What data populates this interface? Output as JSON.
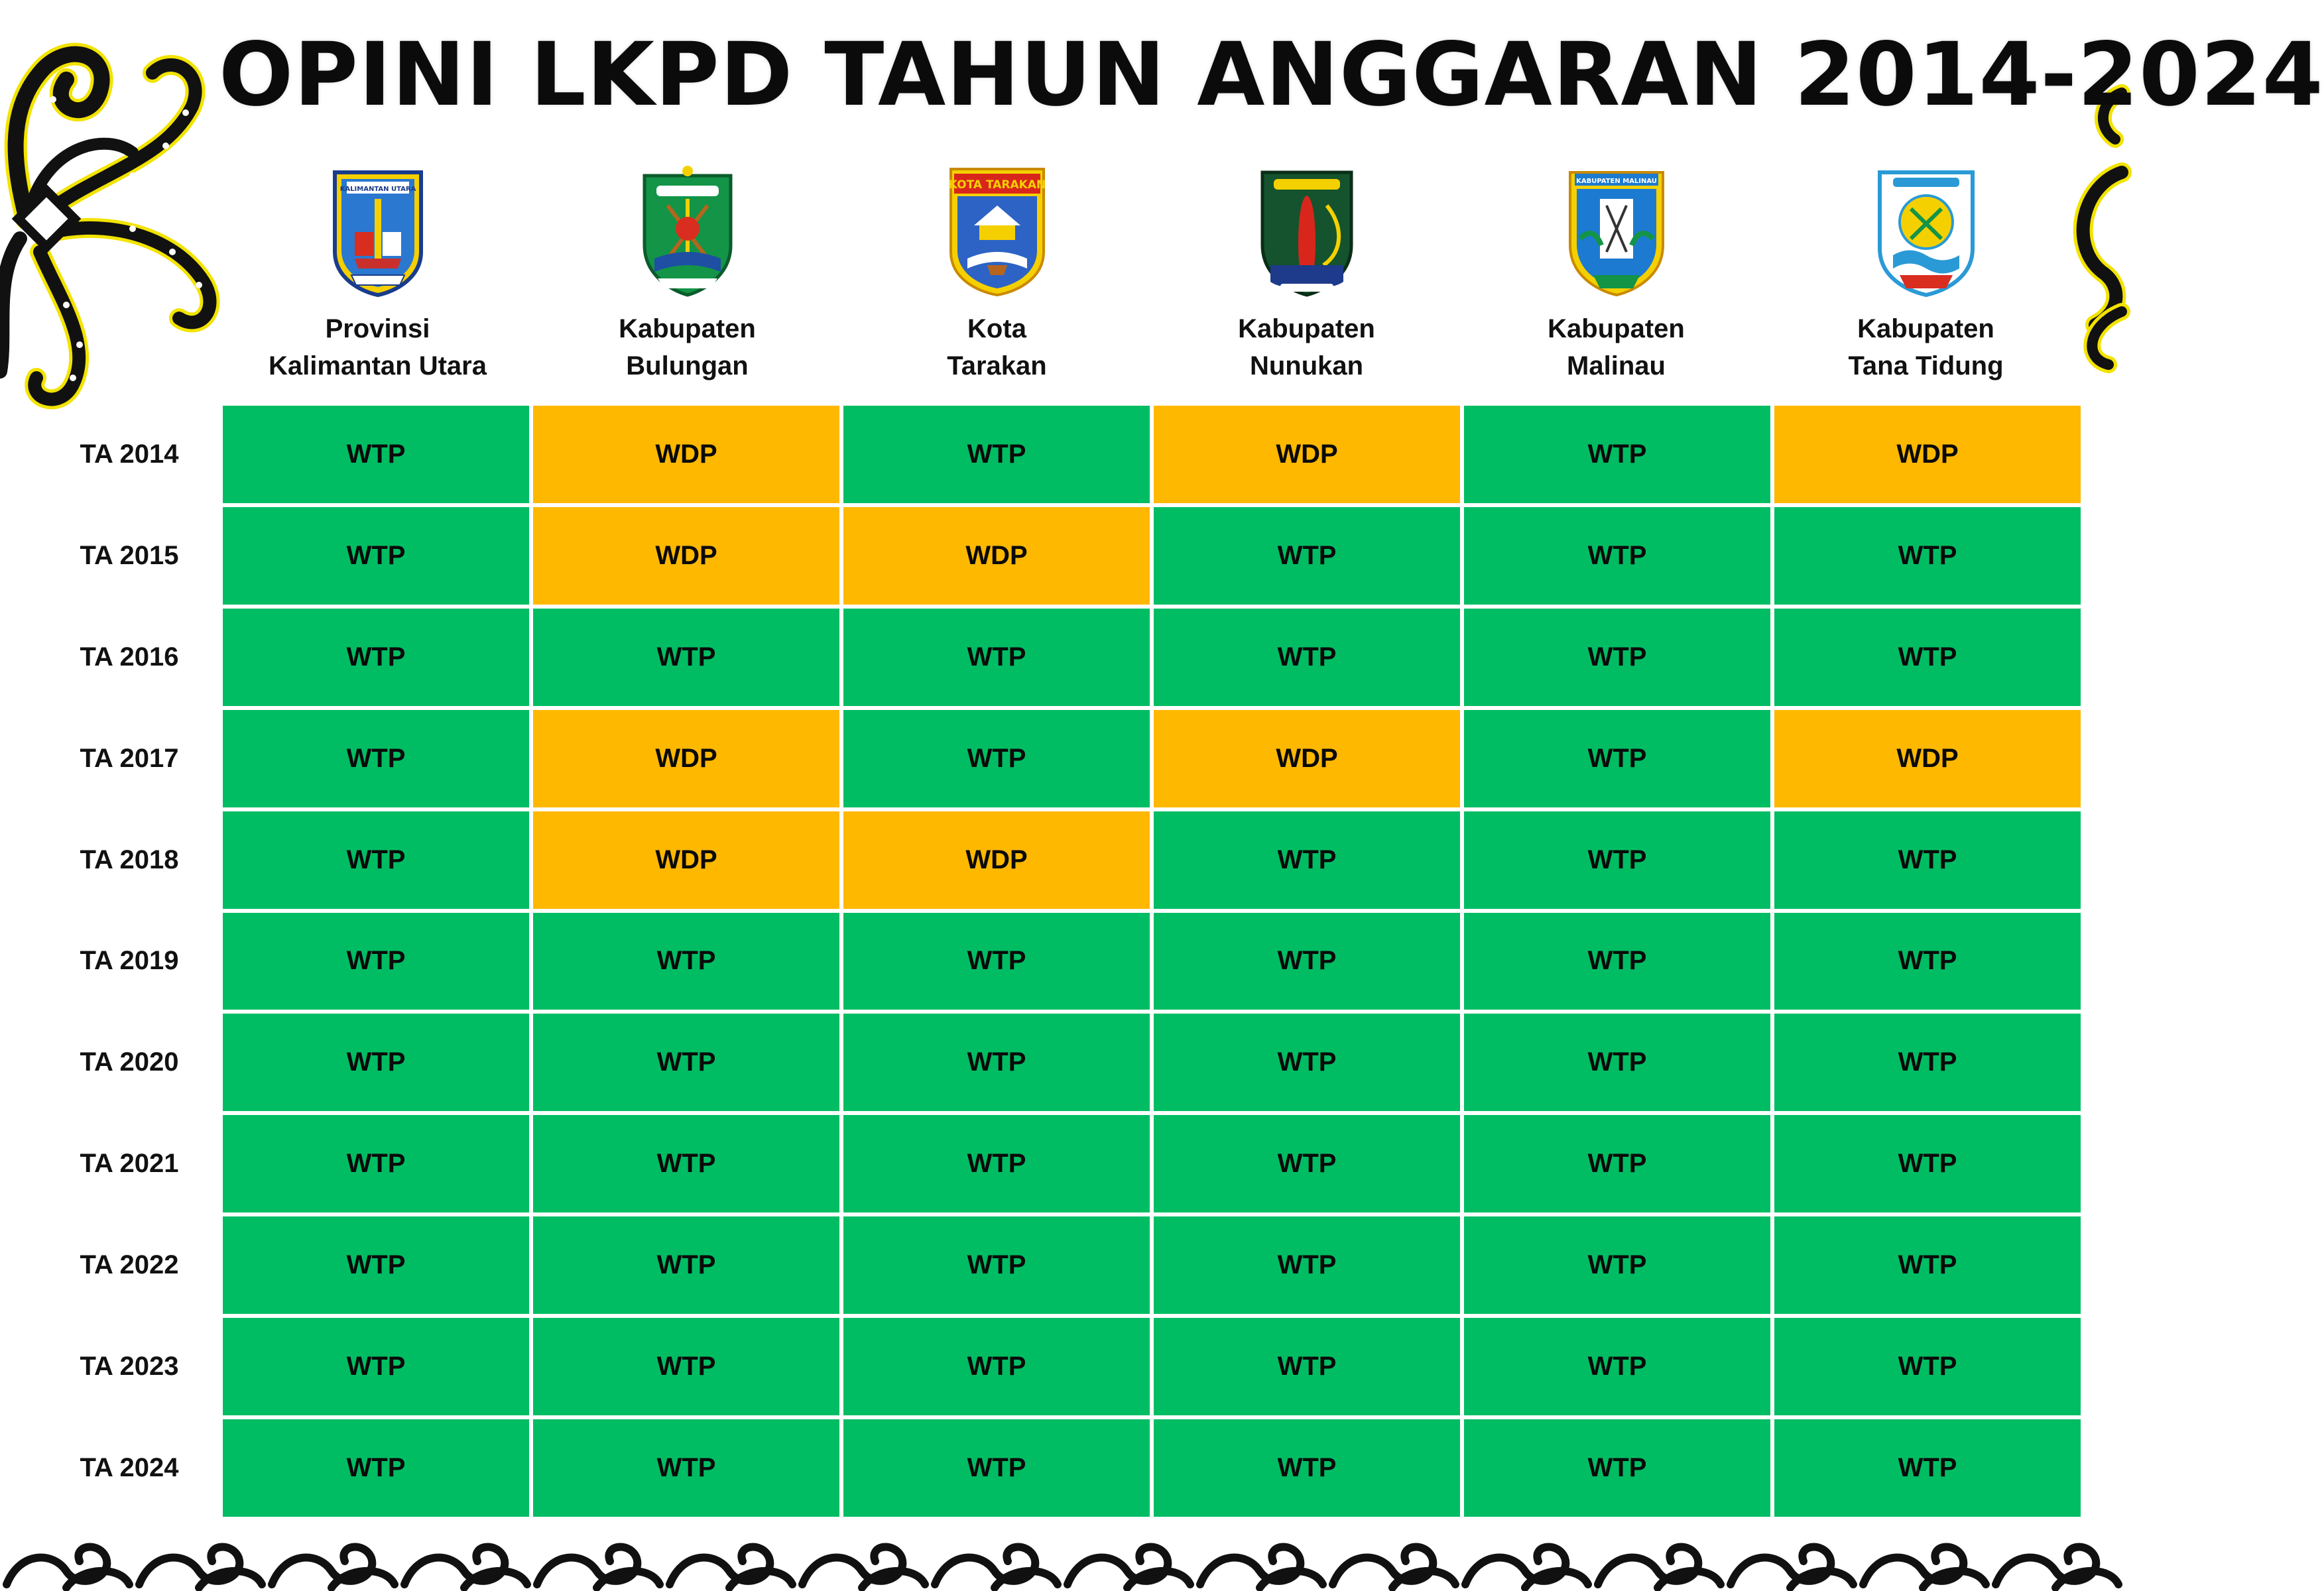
{
  "title": "OPINI LKPD TAHUN ANGGARAN 2014-2024",
  "regions": [
    {
      "line1": "Provinsi",
      "line2": "Kalimantan Utara",
      "emblem": "provinsi-kalimantan-utara-emblem",
      "emblem_text": "KALIMANTAN UTARA",
      "emblem_color": "#1f6fc9"
    },
    {
      "line1": "Kabupaten",
      "line2": "Bulungan",
      "emblem": "kabupaten-bulungan-emblem",
      "emblem_text": "",
      "emblem_color": "#139447"
    },
    {
      "line1": "Kota",
      "line2": "Tarakan",
      "emblem": "kota-tarakan-emblem",
      "emblem_text": "KOTA TARAKAN",
      "emblem_color": "#d9261c"
    },
    {
      "line1": "Kabupaten",
      "line2": "Nunukan",
      "emblem": "kabupaten-nunukan-emblem",
      "emblem_text": "",
      "emblem_color": "#14532d"
    },
    {
      "line1": "Kabupaten",
      "line2": "Malinau",
      "emblem": "kabupaten-malinau-emblem",
      "emblem_text": "KABUPATEN MALINAU",
      "emblem_color": "#1d7ad1"
    },
    {
      "line1": "Kabupaten",
      "line2": "Tana Tidung",
      "emblem": "kabupaten-tana-tidung-emblem",
      "emblem_text": "",
      "emblem_color": "#2a9ad6"
    }
  ],
  "years": [
    "TA 2014",
    "TA 2015",
    "TA 2016",
    "TA 2017",
    "TA 2018",
    "TA 2019",
    "TA 2020",
    "TA 2021",
    "TA 2022",
    "TA 2023",
    "TA 2024"
  ],
  "opinions": [
    [
      "WTP",
      "WDP",
      "WTP",
      "WDP",
      "WTP",
      "WDP"
    ],
    [
      "WTP",
      "WDP",
      "WDP",
      "WTP",
      "WTP",
      "WTP"
    ],
    [
      "WTP",
      "WTP",
      "WTP",
      "WTP",
      "WTP",
      "WTP"
    ],
    [
      "WTP",
      "WDP",
      "WTP",
      "WDP",
      "WTP",
      "WDP"
    ],
    [
      "WTP",
      "WDP",
      "WDP",
      "WTP",
      "WTP",
      "WTP"
    ],
    [
      "WTP",
      "WTP",
      "WTP",
      "WTP",
      "WTP",
      "WTP"
    ],
    [
      "WTP",
      "WTP",
      "WTP",
      "WTP",
      "WTP",
      "WTP"
    ],
    [
      "WTP",
      "WTP",
      "WTP",
      "WTP",
      "WTP",
      "WTP"
    ],
    [
      "WTP",
      "WTP",
      "WTP",
      "WTP",
      "WTP",
      "WTP"
    ],
    [
      "WTP",
      "WTP",
      "WTP",
      "WTP",
      "WTP",
      "WTP"
    ],
    [
      "WTP",
      "WTP",
      "WTP",
      "WTP",
      "WTP",
      "WTP"
    ]
  ],
  "colors": {
    "WTP": "#00bd63",
    "WDP": "#ffb800",
    "ornament_black": "#111111",
    "ornament_yellow": "#f2e300"
  }
}
